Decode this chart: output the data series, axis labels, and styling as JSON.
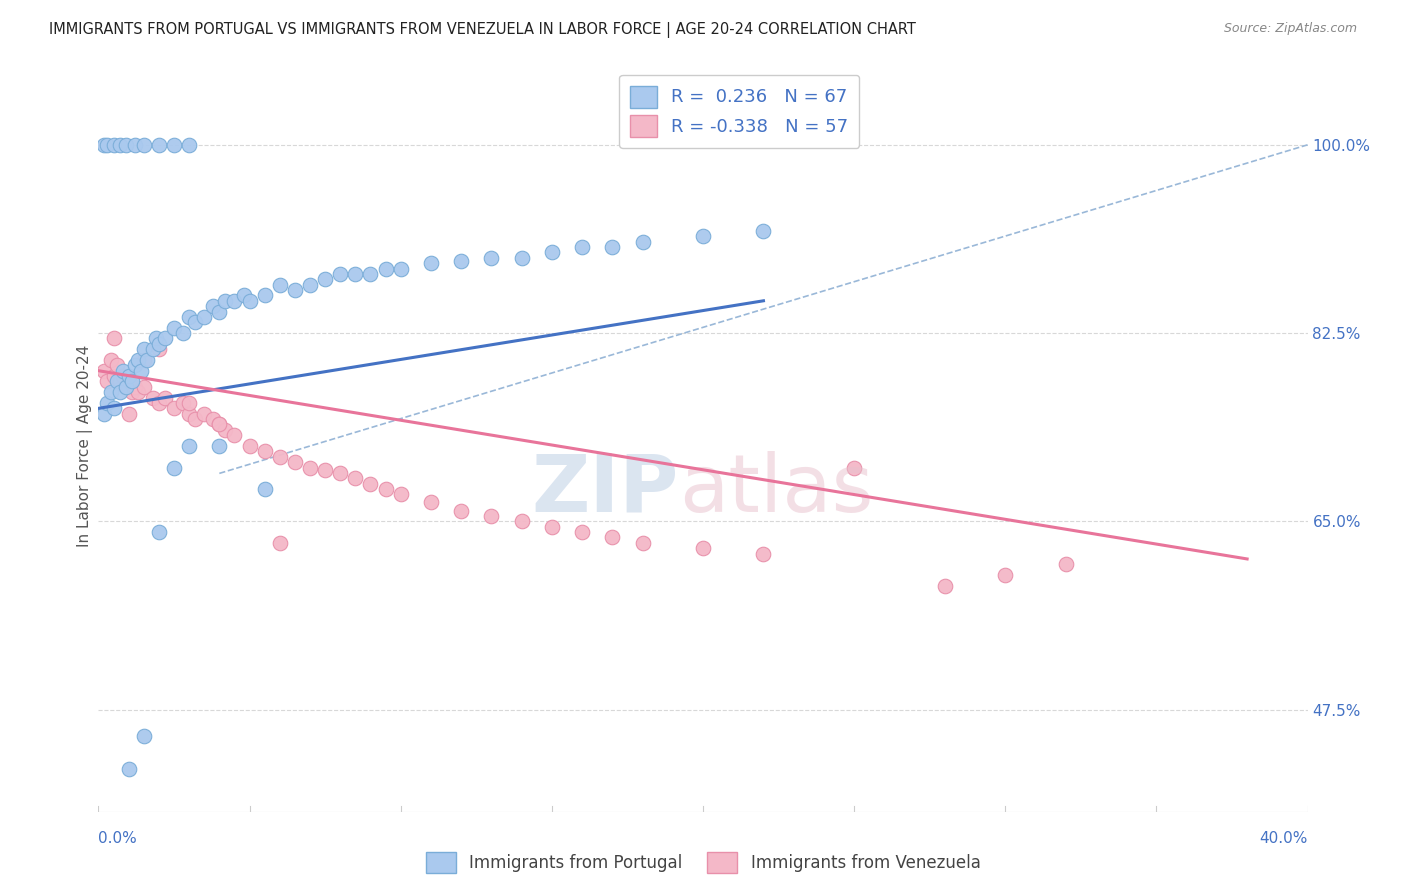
{
  "title": "IMMIGRANTS FROM PORTUGAL VS IMMIGRANTS FROM VENEZUELA IN LABOR FORCE | AGE 20-24 CORRELATION CHART",
  "source": "Source: ZipAtlas.com",
  "ylabel": "In Labor Force | Age 20-24",
  "yticks": [
    "100.0%",
    "82.5%",
    "65.0%",
    "47.5%"
  ],
  "ytick_vals": [
    1.0,
    0.825,
    0.65,
    0.475
  ],
  "xlim": [
    0.0,
    0.4
  ],
  "ylim": [
    0.38,
    1.06
  ],
  "legend_entries": [
    {
      "label": "R =  0.236   N = 67",
      "color": "#aac9ee"
    },
    {
      "label": "R = -0.338   N = 57",
      "color": "#f4b8c8"
    }
  ],
  "legend_label_blue": "Immigrants from Portugal",
  "legend_label_pink": "Immigrants from Venezuela",
  "portugal_color": "#aac9ee",
  "venezuela_color": "#f4b8c8",
  "portugal_edge": "#7aadd8",
  "venezuela_edge": "#e890aa",
  "trend_blue_color": "#4472c4",
  "trend_pink_color": "#e8749a",
  "trend_dashed_color": "#9ab8d8",
  "background_color": "#ffffff",
  "title_color": "#222222",
  "tick_color": "#4472c4",
  "watermark_zip_color": "#ccdaeb",
  "watermark_atlas_color": "#e8c0cc",
  "portugal_trend_x0": 0.0,
  "portugal_trend_y0": 0.755,
  "portugal_trend_x1": 0.22,
  "portugal_trend_y1": 0.855,
  "venezuela_trend_x0": 0.0,
  "venezuela_trend_y0": 0.79,
  "venezuela_trend_x1": 0.38,
  "venezuela_trend_y1": 0.615,
  "dashed_trend_x0": 0.07,
  "dashed_trend_y0": 0.72,
  "dashed_trend_x1": 0.4,
  "dashed_trend_y1": 1.0,
  "portugal_x": [
    0.002,
    0.003,
    0.004,
    0.005,
    0.006,
    0.007,
    0.008,
    0.009,
    0.01,
    0.011,
    0.012,
    0.013,
    0.014,
    0.015,
    0.016,
    0.018,
    0.019,
    0.02,
    0.022,
    0.025,
    0.028,
    0.03,
    0.032,
    0.035,
    0.038,
    0.04,
    0.042,
    0.045,
    0.048,
    0.05,
    0.055,
    0.06,
    0.065,
    0.07,
    0.075,
    0.08,
    0.085,
    0.09,
    0.095,
    0.1,
    0.11,
    0.12,
    0.13,
    0.14,
    0.15,
    0.16,
    0.17,
    0.18,
    0.2,
    0.22,
    0.002,
    0.003,
    0.005,
    0.007,
    0.009,
    0.012,
    0.015,
    0.02,
    0.025,
    0.03,
    0.01,
    0.015,
    0.02,
    0.025,
    0.03,
    0.04,
    0.055
  ],
  "portugal_y": [
    0.75,
    0.76,
    0.77,
    0.755,
    0.78,
    0.77,
    0.79,
    0.775,
    0.785,
    0.78,
    0.795,
    0.8,
    0.79,
    0.81,
    0.8,
    0.81,
    0.82,
    0.815,
    0.82,
    0.83,
    0.825,
    0.84,
    0.835,
    0.84,
    0.85,
    0.845,
    0.855,
    0.855,
    0.86,
    0.855,
    0.86,
    0.87,
    0.865,
    0.87,
    0.875,
    0.88,
    0.88,
    0.88,
    0.885,
    0.885,
    0.89,
    0.892,
    0.895,
    0.895,
    0.9,
    0.905,
    0.905,
    0.91,
    0.915,
    0.92,
    1.0,
    1.0,
    1.0,
    1.0,
    1.0,
    1.0,
    1.0,
    1.0,
    1.0,
    1.0,
    0.42,
    0.45,
    0.64,
    0.7,
    0.72,
    0.72,
    0.68
  ],
  "venezuela_x": [
    0.002,
    0.003,
    0.004,
    0.005,
    0.006,
    0.007,
    0.008,
    0.009,
    0.01,
    0.011,
    0.012,
    0.013,
    0.015,
    0.018,
    0.02,
    0.022,
    0.025,
    0.028,
    0.03,
    0.032,
    0.035,
    0.038,
    0.04,
    0.042,
    0.045,
    0.05,
    0.055,
    0.06,
    0.065,
    0.07,
    0.075,
    0.08,
    0.085,
    0.09,
    0.095,
    0.1,
    0.11,
    0.12,
    0.13,
    0.14,
    0.15,
    0.16,
    0.17,
    0.18,
    0.2,
    0.22,
    0.25,
    0.28,
    0.3,
    0.32,
    0.005,
    0.01,
    0.015,
    0.02,
    0.03,
    0.04,
    0.06
  ],
  "venezuela_y": [
    0.79,
    0.78,
    0.8,
    0.785,
    0.795,
    0.78,
    0.785,
    0.775,
    0.78,
    0.77,
    0.775,
    0.77,
    0.775,
    0.765,
    0.76,
    0.765,
    0.755,
    0.76,
    0.75,
    0.745,
    0.75,
    0.745,
    0.74,
    0.735,
    0.73,
    0.72,
    0.715,
    0.71,
    0.705,
    0.7,
    0.698,
    0.695,
    0.69,
    0.685,
    0.68,
    0.675,
    0.668,
    0.66,
    0.655,
    0.65,
    0.645,
    0.64,
    0.635,
    0.63,
    0.625,
    0.62,
    0.7,
    0.59,
    0.6,
    0.61,
    0.82,
    0.75,
    0.8,
    0.81,
    0.76,
    0.74,
    0.63
  ]
}
